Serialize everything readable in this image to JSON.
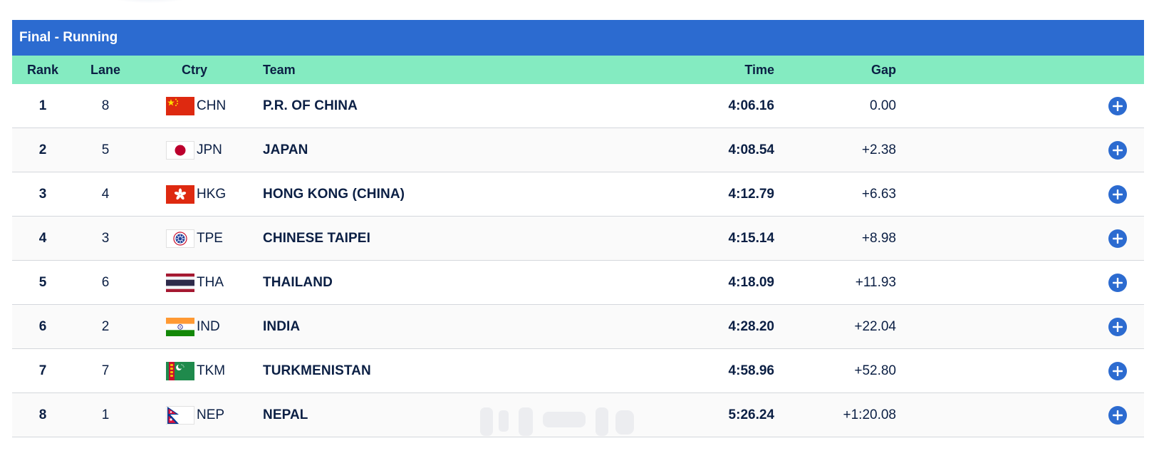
{
  "title": "Final - Running",
  "columns": {
    "rank": "Rank",
    "lane": "Lane",
    "ctry": "Ctry",
    "team": "Team",
    "time": "Time",
    "gap": "Gap"
  },
  "rows": [
    {
      "rank": "1",
      "lane": "8",
      "code": "CHN",
      "team": "P.R. OF CHINA",
      "time": "4:06.16",
      "gap": "0.00",
      "flag_icon": "china-flag-icon"
    },
    {
      "rank": "2",
      "lane": "5",
      "code": "JPN",
      "team": "JAPAN",
      "time": "4:08.54",
      "gap": "+2.38",
      "flag_icon": "japan-flag-icon"
    },
    {
      "rank": "3",
      "lane": "4",
      "code": "HKG",
      "team": "HONG KONG (CHINA)",
      "time": "4:12.79",
      "gap": "+6.63",
      "flag_icon": "hong-kong-flag-icon"
    },
    {
      "rank": "4",
      "lane": "3",
      "code": "TPE",
      "team": "CHINESE TAIPEI",
      "time": "4:15.14",
      "gap": "+8.98",
      "flag_icon": "chinese-taipei-flag-icon"
    },
    {
      "rank": "5",
      "lane": "6",
      "code": "THA",
      "team": "THAILAND",
      "time": "4:18.09",
      "gap": "+11.93",
      "flag_icon": "thailand-flag-icon"
    },
    {
      "rank": "6",
      "lane": "2",
      "code": "IND",
      "team": "INDIA",
      "time": "4:28.20",
      "gap": "+22.04",
      "flag_icon": "india-flag-icon"
    },
    {
      "rank": "7",
      "lane": "7",
      "code": "TKM",
      "team": "TURKMENISTAN",
      "time": "4:58.96",
      "gap": "+52.80",
      "flag_icon": "turkmenistan-flag-icon"
    },
    {
      "rank": "8",
      "lane": "1",
      "code": "NEP",
      "team": "NEPAL",
      "time": "5:26.24",
      "gap": "+1:20.08",
      "flag_icon": "nepal-flag-icon"
    }
  ],
  "colors": {
    "title_bar": "#2c6bd0",
    "header_row": "#84ebc1",
    "text": "#0b1f44",
    "action_button": "#2c6bd0"
  },
  "icons": {
    "row_action": "plus-circle-icon"
  }
}
